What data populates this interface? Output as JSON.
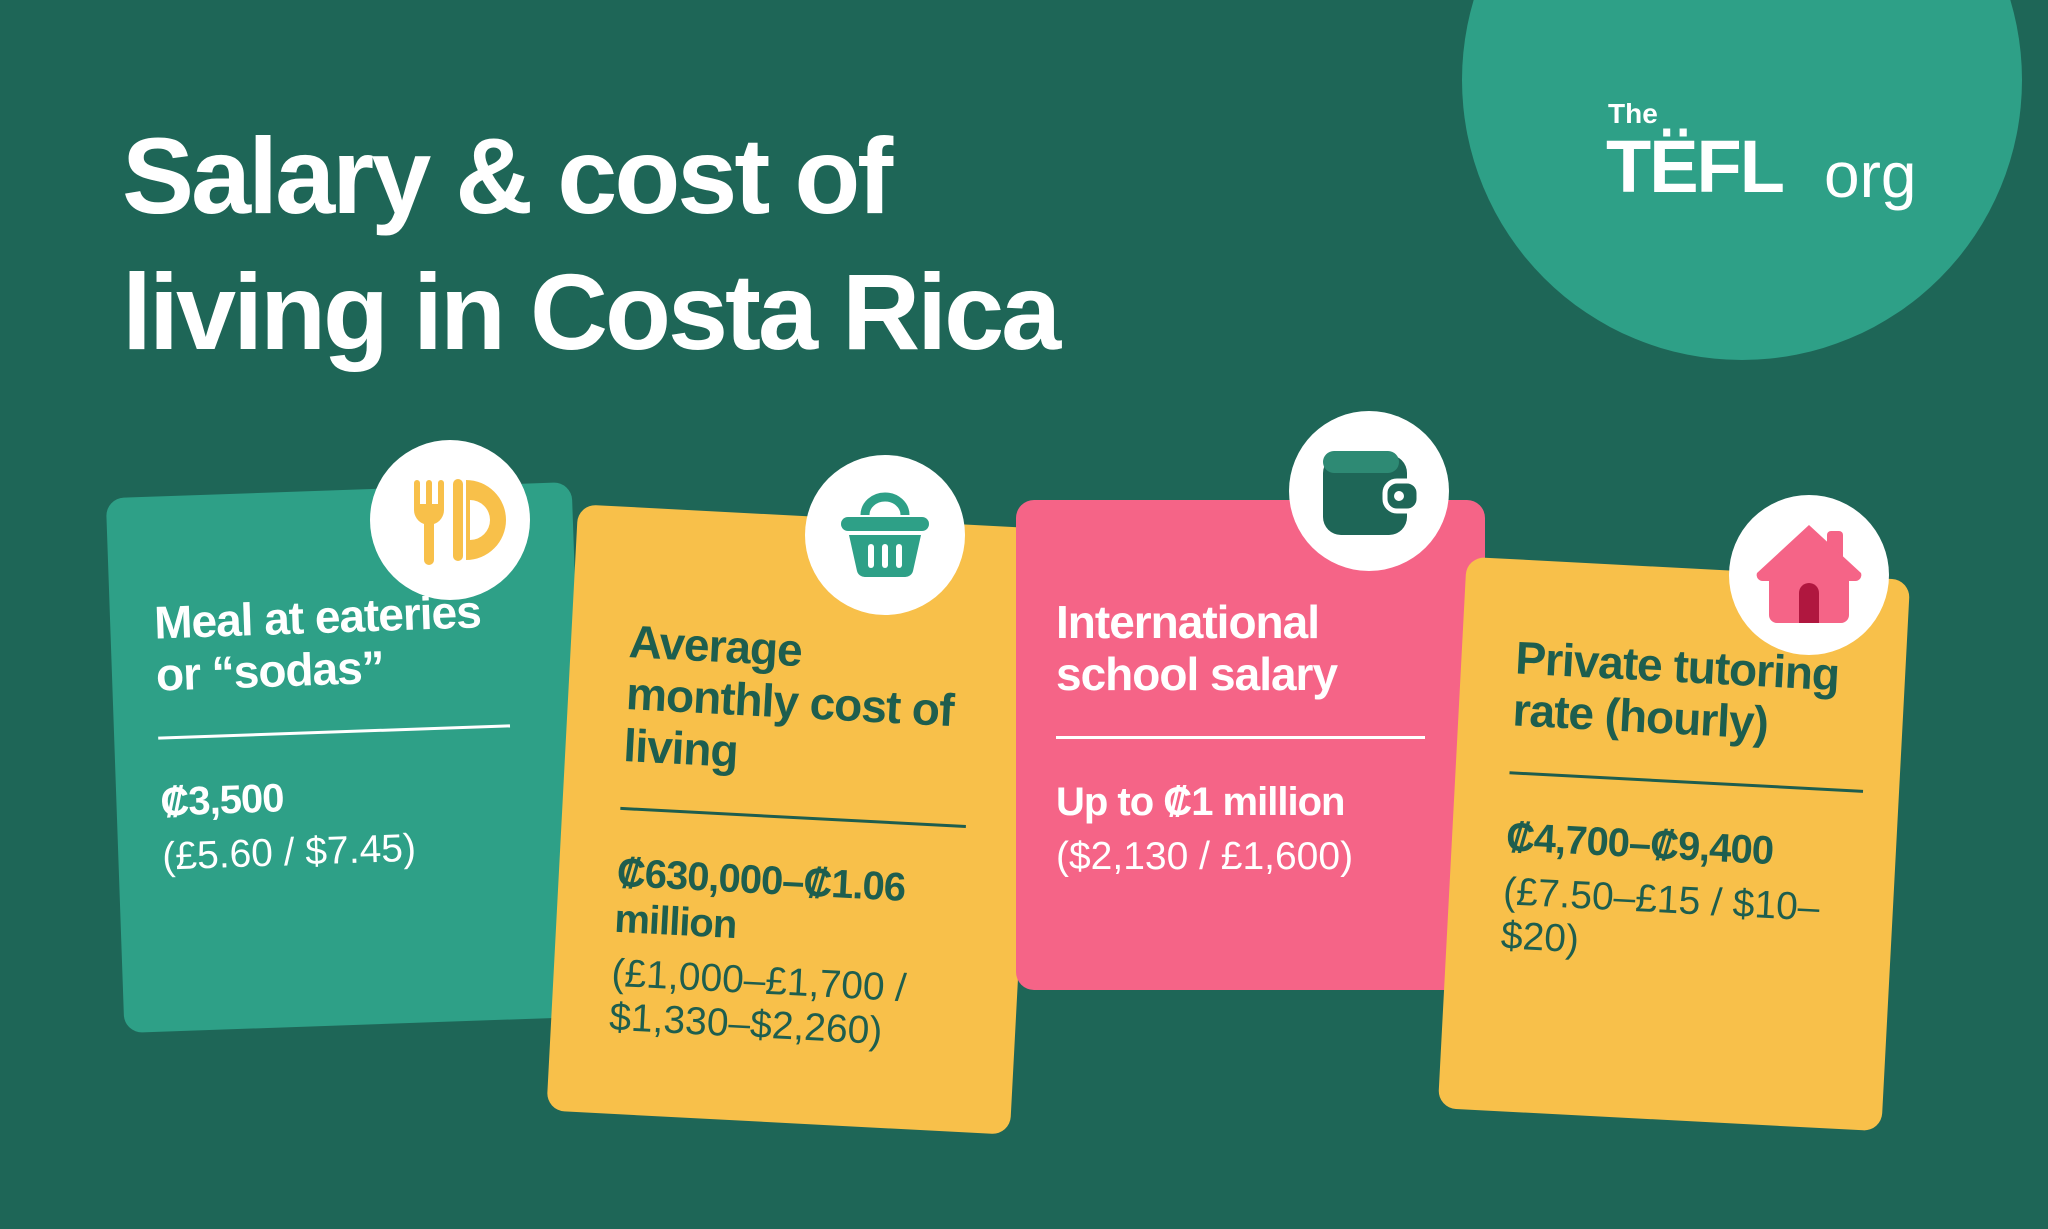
{
  "title": {
    "line1": "Salary & cost of",
    "line2": "living in Costa Rica"
  },
  "logo": {
    "the": "The",
    "tefl": "TËFL",
    "org": "org"
  },
  "cards": [
    {
      "label": "Meal at eateries or “sodas”",
      "price": "₡3,500",
      "conversion": "(£5.60 / $7.45)"
    },
    {
      "label": "Average monthly cost of living",
      "price": "₡630,000–₡1.06 million",
      "conversion": "(£1,000–£1,700 / $1,330–$2,260)"
    },
    {
      "label": "International school salary",
      "price": "Up to ₡1 million",
      "conversion": "($2,130 / £1,600)"
    },
    {
      "label": "Private tutoring rate (hourly)",
      "price": "₡4,700–₡9,400",
      "conversion": "(£7.50–£15 / $10–$20)"
    }
  ]
}
